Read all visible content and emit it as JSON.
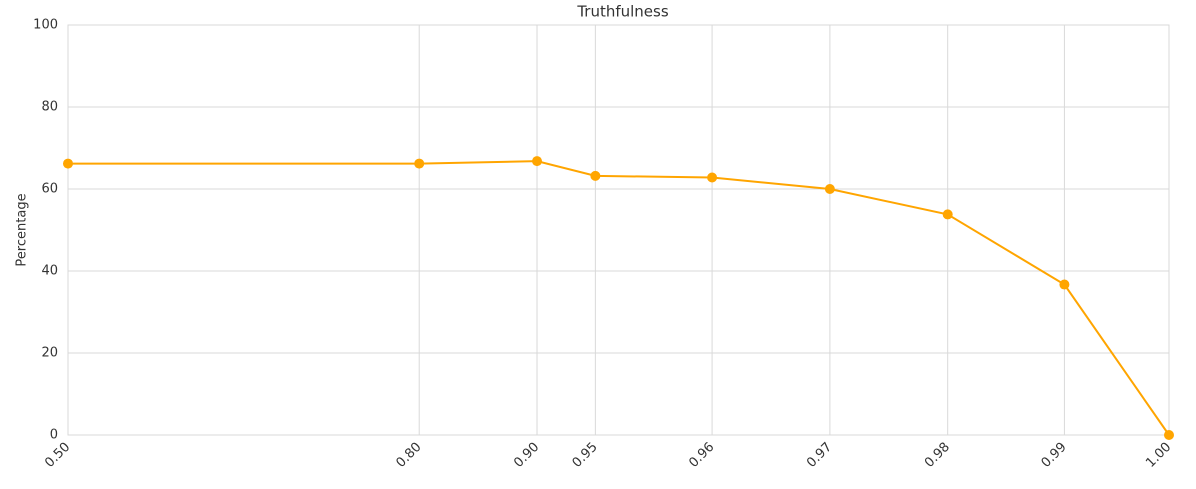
{
  "chart_data": {
    "type": "line",
    "title": "Truthfulness",
    "y_label": "Percentage",
    "categories": [
      "0.50",
      "0.80",
      "0.90",
      "0.95",
      "0.96",
      "0.97",
      "0.98",
      "0.99",
      "1.00"
    ],
    "series": [
      {
        "name": "Truthfulness",
        "color": "#ffa500",
        "values": [
          66.2,
          66.2,
          66.8,
          63.2,
          62.8,
          60.0,
          53.8,
          36.7,
          0
        ]
      }
    ],
    "ylim": [
      0,
      100
    ],
    "yticks": [
      0,
      20,
      40,
      60,
      80,
      100
    ],
    "grid": true
  }
}
